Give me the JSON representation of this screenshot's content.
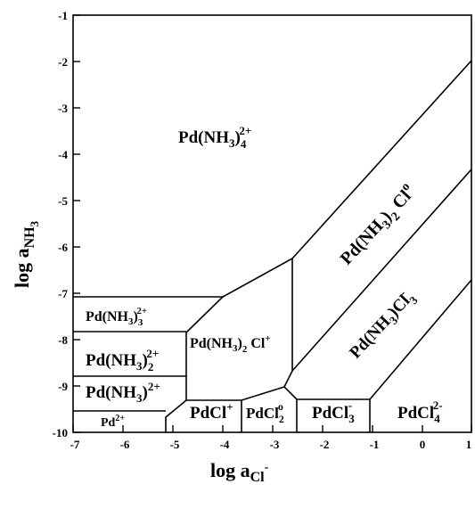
{
  "diagram": {
    "x_axis": {
      "label_main": "log  a",
      "label_sub": "Cl",
      "label_sup": "-",
      "range": [
        -7,
        1
      ],
      "ticks": [
        "-7",
        "-6",
        "-5",
        "-4",
        "-3",
        "-2",
        "-1",
        "0",
        "1"
      ]
    },
    "y_axis": {
      "label_main": "log  a",
      "label_sub": "NH",
      "label_subsub": "3",
      "range": [
        -10,
        -1
      ],
      "ticks": [
        "-1",
        "-2",
        "-3",
        "-4",
        "-5",
        "-6",
        "-7",
        "-8",
        "-9",
        "-10"
      ]
    },
    "regions": {
      "pd_nh3_4": {
        "base": "Pd(NH",
        "sub": "3",
        "close": ")",
        "sub2": "4",
        "sup": "2+"
      },
      "pd_nh3_3": {
        "base": "Pd(NH",
        "sub": "3",
        "close": ")",
        "sub2": "3",
        "sup": "2+"
      },
      "pd_nh3_2": {
        "base": "Pd(NH",
        "sub": "3",
        "close": ")",
        "sub2": "2",
        "sup": "2+"
      },
      "pd_nh3": {
        "base": "Pd(NH",
        "sub": "3",
        "close": ")",
        "sup": "2+"
      },
      "pd": {
        "base": "Pd",
        "sup": "2+"
      },
      "pd_nh3_2_cl": {
        "base": "Pd(NH",
        "sub": "3",
        "close": ")",
        "sub2": "2",
        "tail": " Cl",
        "sup": "+"
      },
      "pd_nh3_2_cl0": {
        "base": "Pd(NH",
        "sub": "3",
        "close": ")",
        "sub2": "2",
        "tail": " Cl",
        "sup": "o"
      },
      "pd_nh3_cl3": {
        "base": "Pd(NH",
        "sub": "3",
        "close": ")Cl",
        "sub2": "3",
        "sup": "-"
      },
      "pdcl": {
        "base": "PdCl",
        "sup": "+"
      },
      "pdcl2": {
        "base": "PdCl",
        "sub": "2",
        "sup": "o"
      },
      "pdcl3": {
        "base": "PdCl",
        "sub": "3",
        "sup": "-"
      },
      "pdcl4": {
        "base": "PdCl",
        "sub": "4",
        "sup": "2-"
      }
    }
  }
}
